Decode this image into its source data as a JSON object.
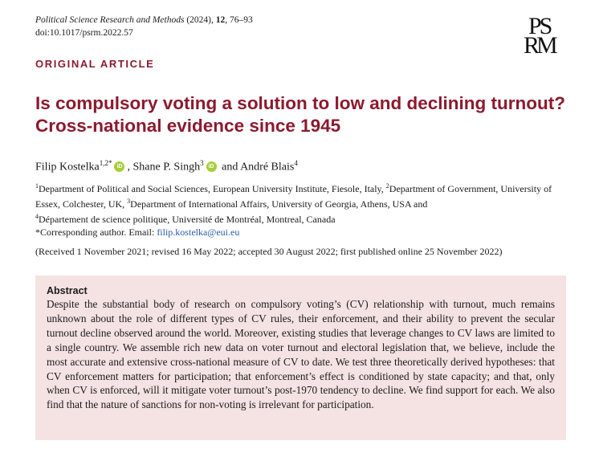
{
  "header": {
    "journal_name": "Political Science Research and Methods",
    "journal_year": " (2024), ",
    "journal_volume": "12",
    "journal_pages": ", 76–93",
    "doi": "doi:10.1017/psrm.2022.57",
    "logo_line1": "PS",
    "logo_line2": "RM"
  },
  "article": {
    "type": "ORIGINAL ARTICLE",
    "title": "Is compulsory voting a solution to low and declining turnout? Cross-national evidence since 1945",
    "authors": [
      {
        "name": "Filip Kostelka",
        "sup": "1,2*",
        "orcid": "iD"
      },
      {
        "sep": ", ",
        "name": "Shane P. Singh",
        "sup": "3",
        "orcid": "iD"
      },
      {
        "sep": " and ",
        "name": "André Blais",
        "sup": "4"
      }
    ],
    "affiliations": {
      "a1_sup": "1",
      "a1": "Department of Political and Social Sciences, European University Institute, Fiesole, Italy, ",
      "a2_sup": "2",
      "a2": "Department of Government, University of Essex, Colchester, UK, ",
      "a3_sup": "3",
      "a3": "Department of International Affairs, University of Georgia, Athens, USA and",
      "a4_sup": "4",
      "a4": "Département de science politique, Université de Montréal, Montreal, Canada",
      "corresponding_prefix": "*Corresponding author. Email: ",
      "email": "filip.kostelka@eui.eu"
    },
    "received": "(Received 1 November 2021; revised 16 May 2022; accepted 30 August 2022; first published online 25 November 2022)",
    "abstract_heading": "Abstract",
    "abstract": "Despite the substantial body of research on compulsory voting’s (CV) relationship with turnout, much remains unknown about the role of different types of CV rules, their enforcement, and their ability to prevent the secular turnout decline observed around the world. Moreover, existing studies that leverage changes to CV laws are limited to a single country. We assemble rich new data on voter turnout and electoral legislation that, we believe, include the most accurate and extensive cross-national measure of CV to date. We test three theoretically derived hypotheses: that CV enforcement matters for participation; that enforcement’s effect is conditioned by state capacity; and that, only when CV is enforced, will it mitigate voter turnout’s post-1970 tendency to decline. We find support for each. We also find that the nature of sanctions for non-voting is irrelevant for participation."
  },
  "colors": {
    "accent": "#8b1a2e",
    "abstract_bg": "#f5e3e3",
    "orcid": "#a6ce39",
    "link": "#2a5aa8"
  }
}
